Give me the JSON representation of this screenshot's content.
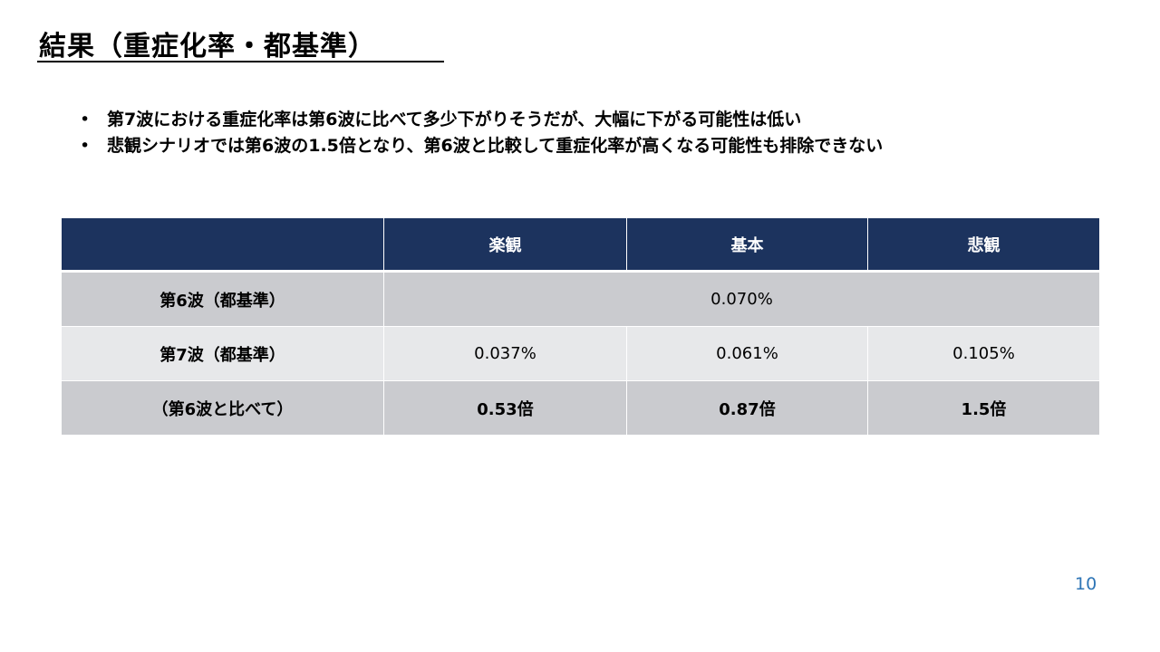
{
  "title": "結果（重症化率・都基準）",
  "bullets": [
    "第7波における重症化率は第6波に比べて多少下がりそうだが、大幅に下がる可能性は低い",
    "悲観シナリオでは第6波の1.5倍となり、第6波と比較して重症化率が高くなる可能性も排除できない"
  ],
  "bullet_marker": "•",
  "table": {
    "headers": [
      "",
      "楽観",
      "基本",
      "悲観"
    ],
    "rows": [
      {
        "label": "第6波（都基準）",
        "merged_value": "0.070%"
      },
      {
        "label": "第7波（都基準）",
        "values": [
          "0.037%",
          "0.061%",
          "0.105%"
        ]
      },
      {
        "label": "（第6波と比べて）",
        "values": [
          "0.53倍",
          "0.87倍",
          "1.5倍"
        ]
      }
    ]
  },
  "colors": {
    "header_bg": "#1c335e",
    "row_dark": "#cacbcf",
    "row_light": "#e7e8ea",
    "page_number": "#2e75b6"
  },
  "page_number": "10"
}
